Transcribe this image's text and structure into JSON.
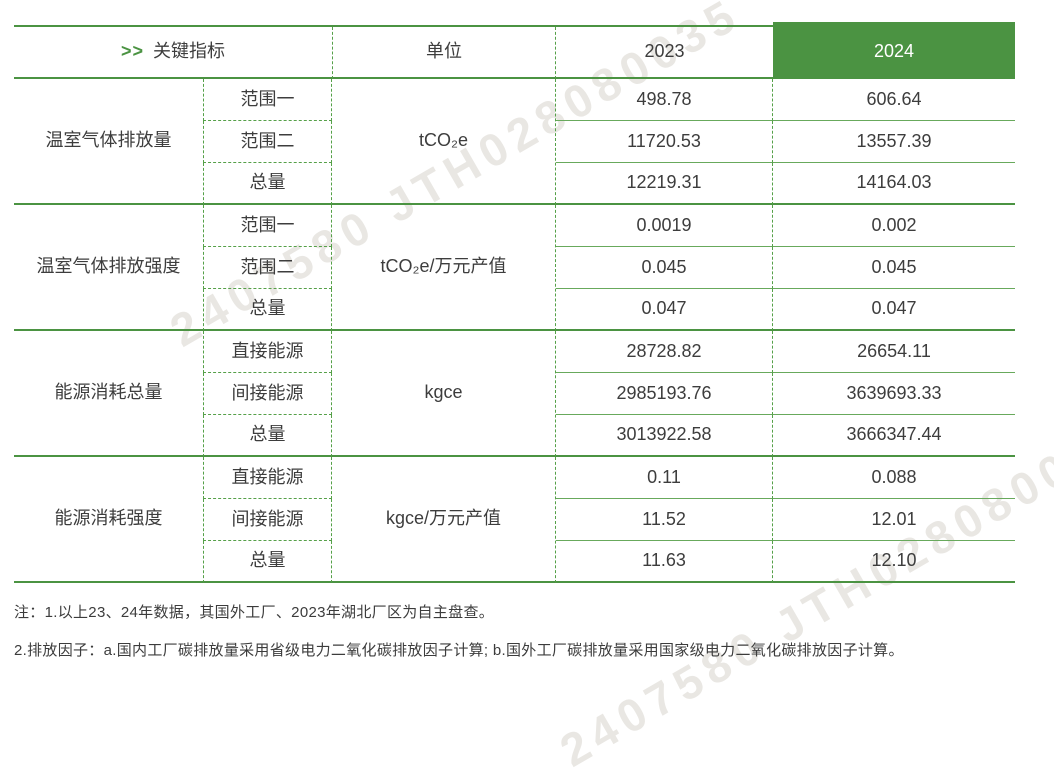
{
  "watermark": {
    "text": "2407580 JTH028080035"
  },
  "colors": {
    "accent_green": "#4b9342",
    "header_2024_bg": "#4b9342",
    "header_2024_text": "#ffffff",
    "body_text": "#3d3d3d"
  },
  "table": {
    "header": {
      "arrows": ">>",
      "key_label": "关键指标",
      "unit_label": "单位",
      "col2023": "2023",
      "col2024": "2024"
    },
    "groups": [
      {
        "name": "温室气体排放量",
        "unit": "tCO₂e",
        "rows": [
          {
            "label": "范围一",
            "y2023": "498.78",
            "y2024": "606.64"
          },
          {
            "label": "范围二",
            "y2023": "11720.53",
            "y2024": "13557.39"
          },
          {
            "label": "总量",
            "y2023": "12219.31",
            "y2024": "14164.03"
          }
        ]
      },
      {
        "name": "温室气体排放强度",
        "unit": "tCO₂e/万元产值",
        "rows": [
          {
            "label": "范围一",
            "y2023": "0.0019",
            "y2024": "0.002"
          },
          {
            "label": "范围二",
            "y2023": "0.045",
            "y2024": "0.045"
          },
          {
            "label": "总量",
            "y2023": "0.047",
            "y2024": "0.047"
          }
        ]
      },
      {
        "name": "能源消耗总量",
        "unit": "kgce",
        "rows": [
          {
            "label": "直接能源",
            "y2023": "28728.82",
            "y2024": "26654.11"
          },
          {
            "label": "间接能源",
            "y2023": "2985193.76",
            "y2024": "3639693.33"
          },
          {
            "label": "总量",
            "y2023": "3013922.58",
            "y2024": "3666347.44"
          }
        ]
      },
      {
        "name": "能源消耗强度",
        "unit": "kgce/万元产值",
        "rows": [
          {
            "label": "直接能源",
            "y2023": "0.11",
            "y2024": "0.088"
          },
          {
            "label": "间接能源",
            "y2023": "11.52",
            "y2024": "12.01"
          },
          {
            "label": "总量",
            "y2023": "11.63",
            "y2024": "12.10"
          }
        ]
      }
    ]
  },
  "notes": {
    "line1": "注：1.以上23、24年数据，其国外工厂、2023年湖北厂区为自主盘查。",
    "line2": "2.排放因子：a.国内工厂碳排放量采用省级电力二氧化碳排放因子计算; b.国外工厂碳排放量采用国家级电力二氧化碳排放因子计算。"
  }
}
